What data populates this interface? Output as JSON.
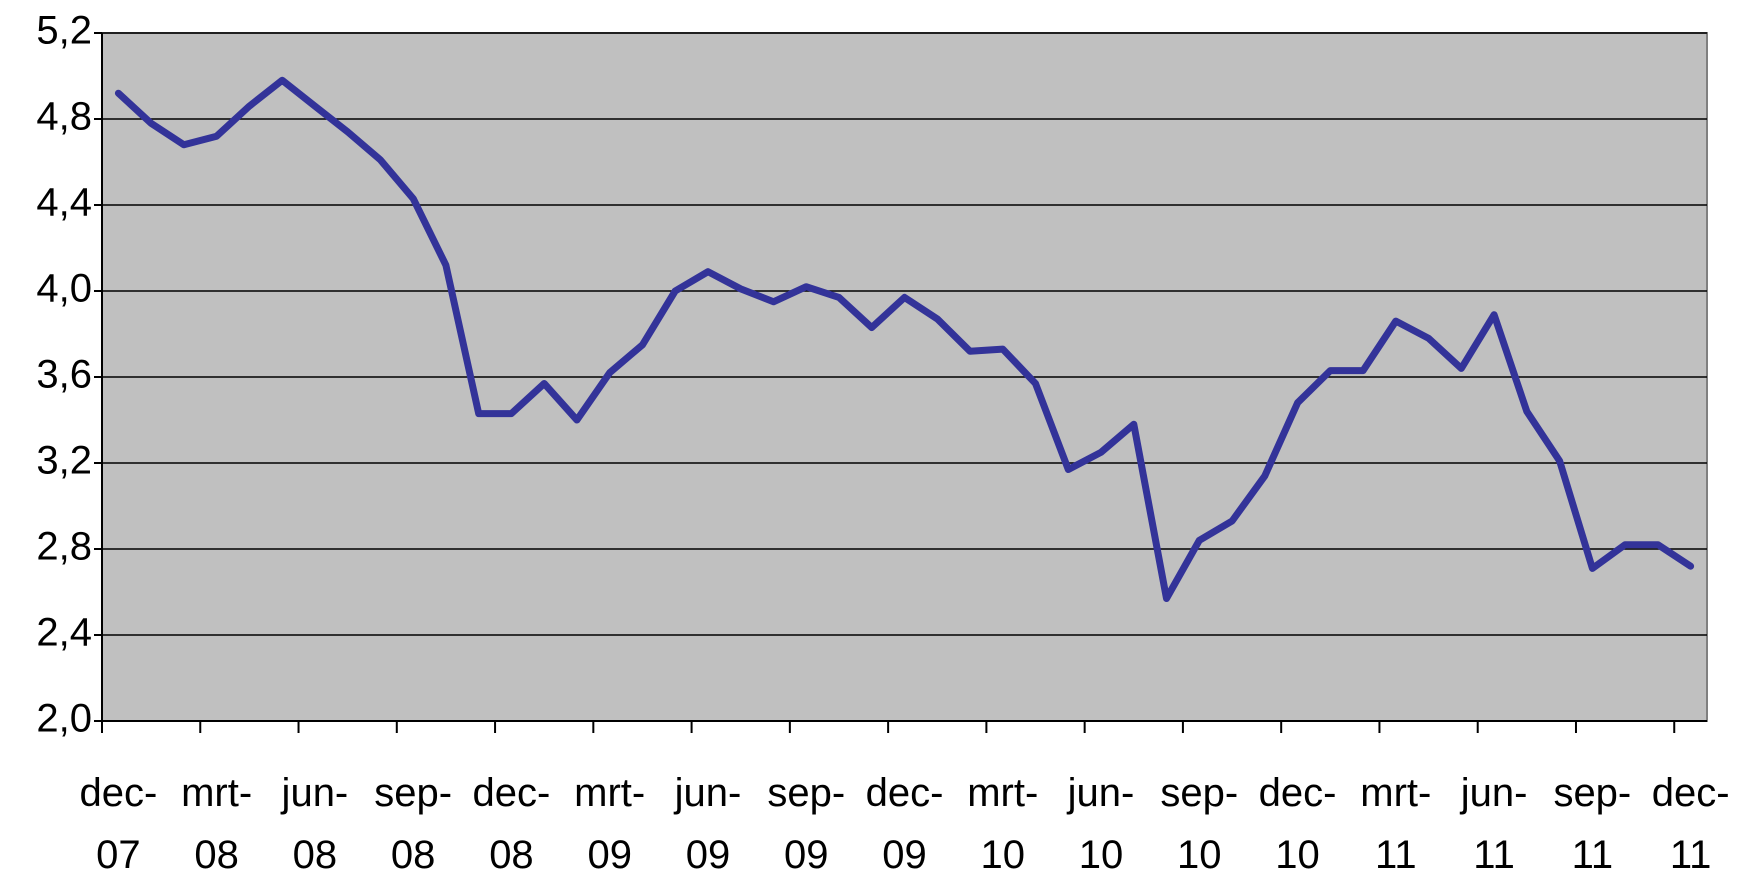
{
  "chart_data": {
    "type": "line",
    "categories": [
      "dec-07",
      null,
      null,
      "mrt-08",
      null,
      null,
      "jun-08",
      null,
      null,
      "sep-08",
      null,
      null,
      "dec-08",
      null,
      null,
      "mrt-09",
      null,
      null,
      "jun-09",
      null,
      null,
      "sep-09",
      null,
      null,
      "dec-09",
      null,
      null,
      "mrt-10",
      null,
      null,
      "jun-10",
      null,
      null,
      "sep-10",
      null,
      null,
      "dec-10",
      null,
      null,
      "mrt-11",
      null,
      null,
      "jun-11",
      null,
      null,
      "sep-11",
      null,
      null,
      "dec-11"
    ],
    "series": [
      {
        "color": "#333399",
        "values": [
          4.92,
          4.78,
          4.68,
          4.72,
          4.86,
          4.98,
          4.86,
          4.74,
          4.61,
          4.43,
          4.12,
          3.43,
          3.43,
          3.57,
          3.4,
          3.62,
          3.75,
          4.0,
          4.09,
          4.01,
          3.95,
          4.02,
          3.97,
          3.83,
          3.97,
          3.87,
          3.72,
          3.73,
          3.57,
          3.17,
          3.25,
          3.38,
          2.57,
          2.84,
          2.93,
          3.14,
          3.48,
          3.63,
          3.63,
          3.86,
          3.78,
          3.64,
          3.89,
          3.44,
          3.21,
          2.71,
          2.82,
          2.82,
          2.72
        ]
      }
    ],
    "ylim": [
      2.0,
      5.2
    ],
    "yticks": [
      {
        "value": 2.0,
        "label": "2,0"
      },
      {
        "value": 2.4,
        "label": "2,4"
      },
      {
        "value": 2.8,
        "label": "2,8"
      },
      {
        "value": 3.2,
        "label": "3,2"
      },
      {
        "value": 3.6,
        "label": "3,6"
      },
      {
        "value": 4.0,
        "label": "4,0"
      },
      {
        "value": 4.4,
        "label": "4,4"
      },
      {
        "value": 4.8,
        "label": "4,8"
      },
      {
        "value": 5.2,
        "label": "5,2"
      }
    ],
    "grid": true,
    "background": "#c0c0c0"
  }
}
